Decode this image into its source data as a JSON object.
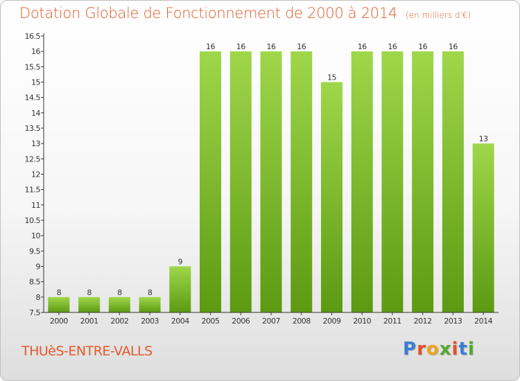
{
  "header": {
    "title": "Dotation Globale de Fonctionnement de 2000 à 2014",
    "unit": "(en milliers d'€)"
  },
  "footer": {
    "commune": "THUèS-ENTRE-VALLS",
    "logo_letters": [
      "P",
      "r",
      "o",
      "x",
      "i",
      "t",
      "i"
    ],
    "logo_colors": [
      "#3a7fcf",
      "#e8502a",
      "#f2a31c",
      "#55a92f",
      "#e8502a",
      "#3a7fcf",
      "#55a92f"
    ]
  },
  "colors": {
    "bar_top": "#9fd74a",
    "bar_bottom": "#5c9a12",
    "accent": "#e05a2a",
    "axis": "#333333"
  },
  "chart_data": {
    "type": "bar",
    "categories": [
      "2000",
      "2001",
      "2002",
      "2003",
      "2004",
      "2005",
      "2006",
      "2007",
      "2008",
      "2009",
      "2010",
      "2011",
      "2012",
      "2013",
      "2014"
    ],
    "values": [
      8,
      8,
      8,
      8,
      9,
      16,
      16,
      16,
      16,
      15,
      16,
      16,
      16,
      16,
      13
    ],
    "ylim": [
      7.5,
      16.5
    ],
    "yticks": [
      "7.5",
      "8",
      "8.5",
      "9",
      "9.5",
      "10",
      "10.5",
      "11",
      "11.5",
      "12",
      "12.5",
      "13",
      "13.5",
      "14",
      "14.5",
      "15",
      "15.5",
      "16",
      "16.5"
    ],
    "grid": false,
    "legend": "none"
  }
}
